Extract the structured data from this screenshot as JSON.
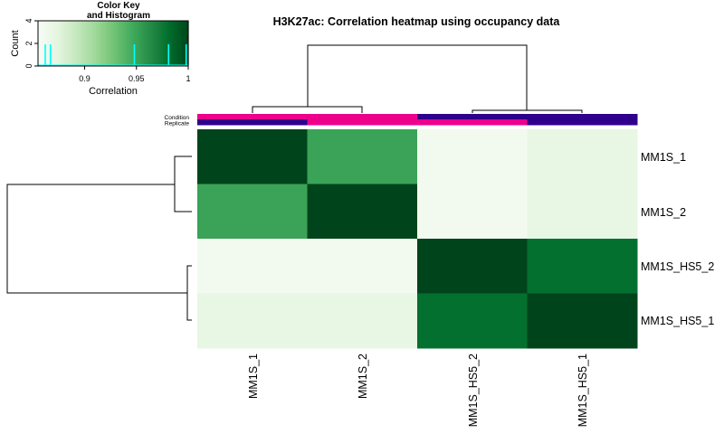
{
  "chart_data": {
    "type": "heatmap",
    "title": "H3K27ac: Correlation heatmap using occupancy data",
    "rows": [
      "MM1S_1",
      "MM1S_2",
      "MM1S_HS5_2",
      "MM1S_HS5_1"
    ],
    "columns": [
      "MM1S_1",
      "MM1S_2",
      "MM1S_HS5_2",
      "MM1S_HS5_1"
    ],
    "values": [
      [
        1.0,
        0.95,
        0.86,
        0.87
      ],
      [
        0.95,
        1.0,
        0.86,
        0.87
      ],
      [
        0.86,
        0.86,
        1.0,
        0.98
      ],
      [
        0.87,
        0.87,
        0.98,
        1.0
      ]
    ],
    "colormap": [
      "#f7fcf5",
      "#e5f5e0",
      "#c7e9c0",
      "#a1d99b",
      "#74c476",
      "#41ab5d",
      "#238b45",
      "#006d2c",
      "#00441b"
    ],
    "annotation_rows": [
      "Condition",
      "Replicate"
    ],
    "condition_colors": [
      "#ec008c",
      "#ec008c",
      "#2e008b",
      "#2e008b"
    ],
    "replicate_colors": [
      "#2e008b",
      "#ec008c",
      "#ec008c",
      "#2e008b"
    ],
    "color_key": {
      "title_line1": "Color Key",
      "title_line2": "and Histogram",
      "xlabel": "Correlation",
      "ylabel": "Count",
      "xlim": [
        0.855,
        1.0
      ],
      "ylim": [
        0,
        4
      ],
      "x_ticks": [
        "0.9",
        "0.95",
        "1"
      ],
      "y_ticks": [
        "0",
        "2",
        "4"
      ],
      "histogram_color": "#00ffff",
      "histogram_values": [
        0.862,
        0.867,
        0.948,
        0.981,
        0.998
      ]
    }
  }
}
